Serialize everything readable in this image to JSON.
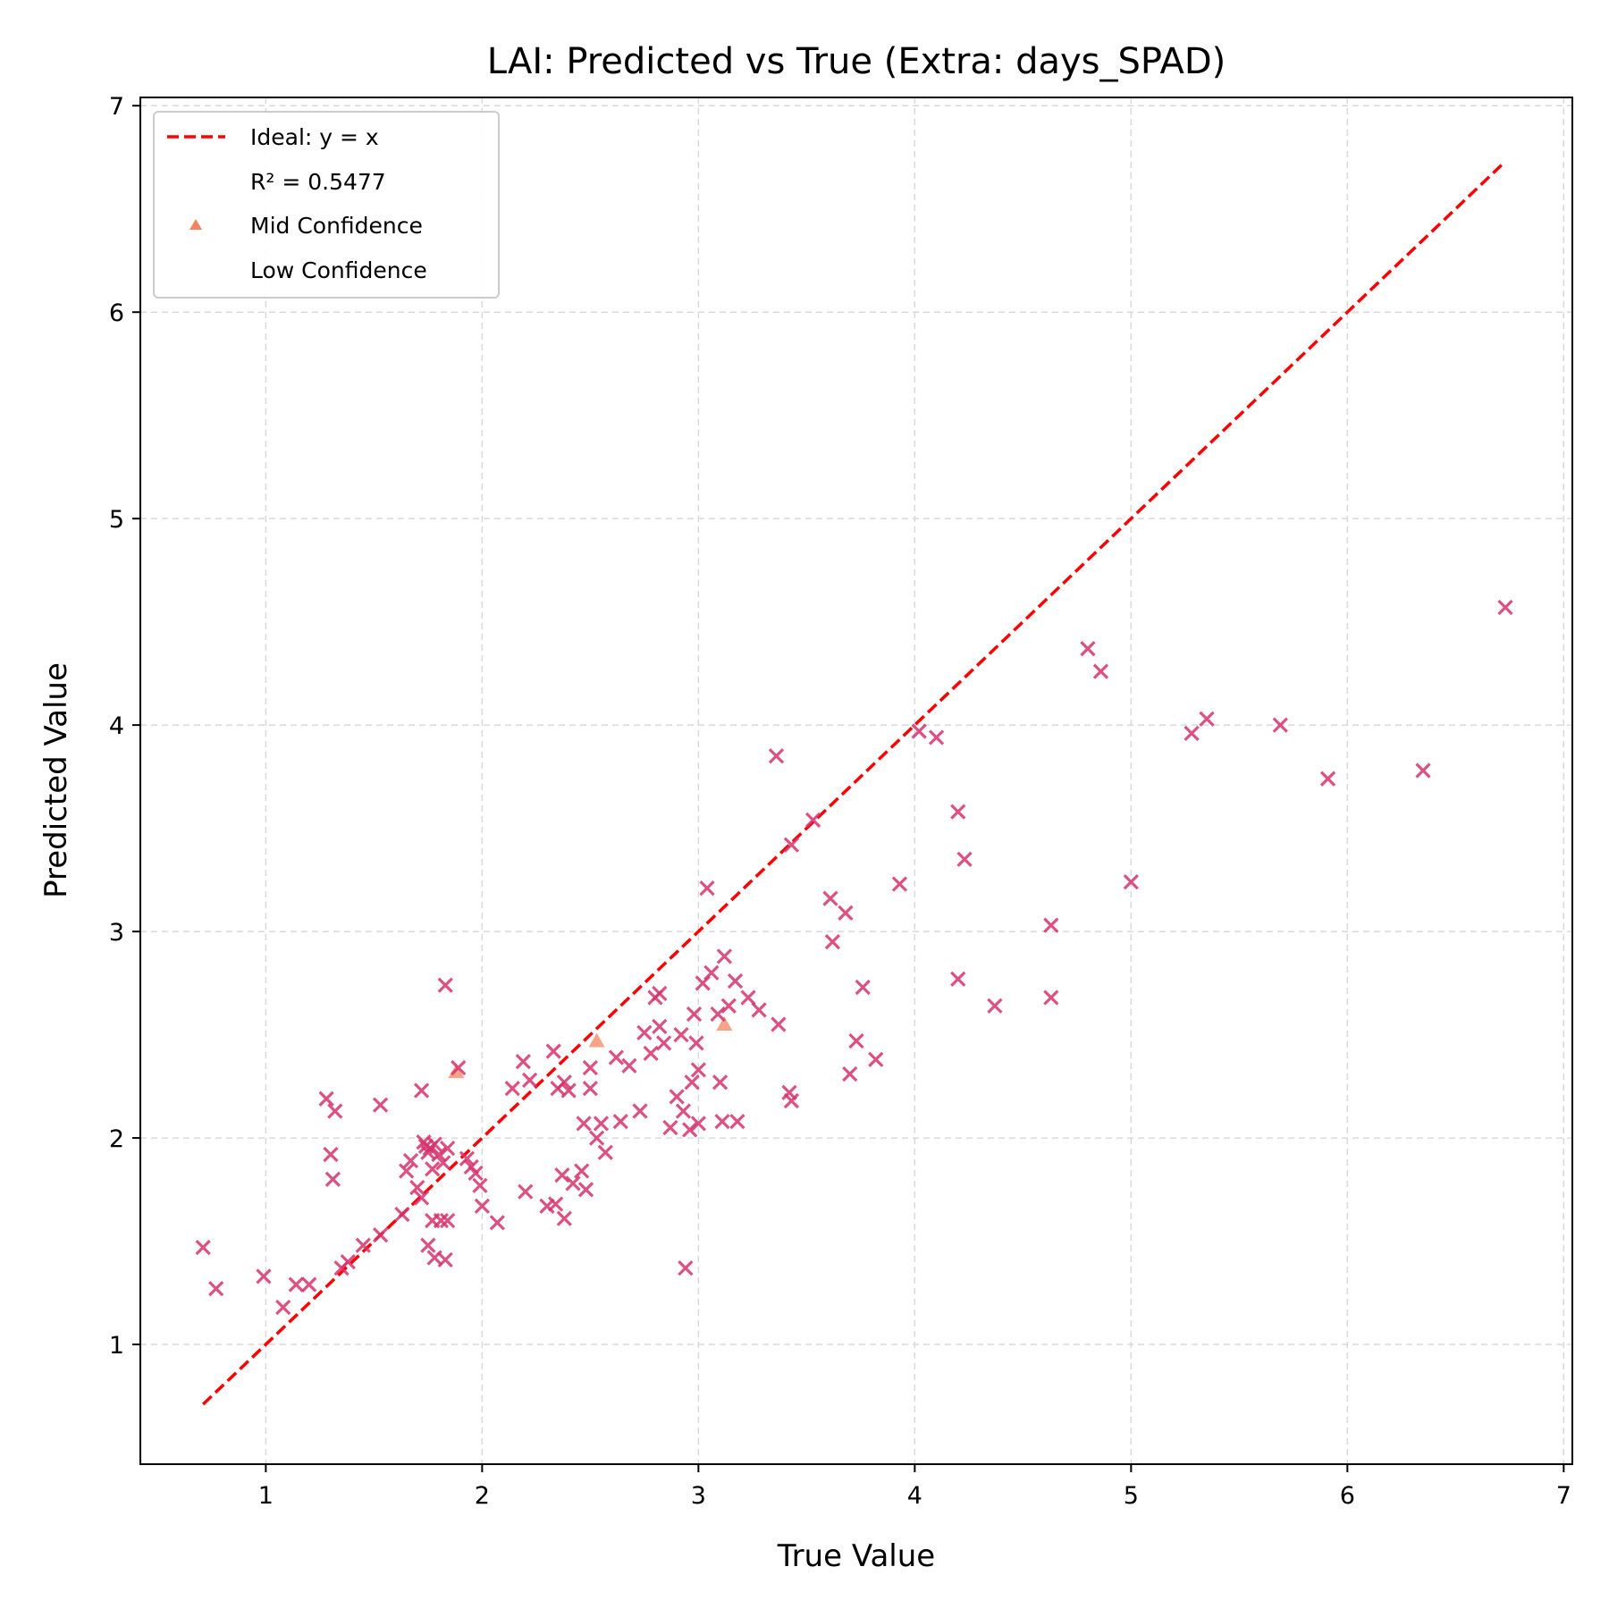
{
  "chart_data": {
    "type": "scatter",
    "title": "LAI: Predicted vs True (Extra: days_SPAD)",
    "xlabel": "True Value",
    "ylabel": "Predicted Value",
    "xlim": [
      0.42,
      7.04
    ],
    "ylim": [
      0.42,
      7.04
    ],
    "xticks": [
      1,
      2,
      3,
      4,
      5,
      6,
      7
    ],
    "yticks": [
      1,
      2,
      3,
      4,
      5,
      6,
      7
    ],
    "grid": true,
    "legend_position": "top-left",
    "ideal_line": {
      "label": "Ideal: y = x",
      "from": [
        0.71,
        0.71
      ],
      "to": [
        6.73,
        6.73
      ],
      "color": "#ff0000"
    },
    "r2_label": "R² = 0.5477",
    "series": [
      {
        "name": "Mid Confidence",
        "marker": "triangle",
        "color": "#f4845f",
        "points": [
          [
            1.88,
            2.32
          ],
          [
            2.53,
            2.47
          ],
          [
            3.12,
            2.55
          ]
        ]
      },
      {
        "name": "Low Confidence",
        "marker": "x",
        "color": "#d6336c",
        "points": [
          [
            0.71,
            1.47
          ],
          [
            0.77,
            1.27
          ],
          [
            0.99,
            1.33
          ],
          [
            1.08,
            1.18
          ],
          [
            1.14,
            1.29
          ],
          [
            1.2,
            1.29
          ],
          [
            1.35,
            1.37
          ],
          [
            1.38,
            1.4
          ],
          [
            1.45,
            1.48
          ],
          [
            1.53,
            1.53
          ],
          [
            1.63,
            1.63
          ],
          [
            1.28,
            2.19
          ],
          [
            1.32,
            2.13
          ],
          [
            1.3,
            1.92
          ],
          [
            1.31,
            1.8
          ],
          [
            1.53,
            2.16
          ],
          [
            1.72,
            2.23
          ],
          [
            1.65,
            1.84
          ],
          [
            1.67,
            1.89
          ],
          [
            1.7,
            1.76
          ],
          [
            1.72,
            1.71
          ],
          [
            1.73,
            1.98
          ],
          [
            1.74,
            1.96
          ],
          [
            1.75,
            1.93
          ],
          [
            1.76,
            1.95
          ],
          [
            1.77,
            1.85
          ],
          [
            1.78,
            1.97
          ],
          [
            1.8,
            1.92
          ],
          [
            1.82,
            1.88
          ],
          [
            1.84,
            1.95
          ],
          [
            1.75,
            1.48
          ],
          [
            1.77,
            1.6
          ],
          [
            1.78,
            1.42
          ],
          [
            1.81,
            1.6
          ],
          [
            1.83,
            1.41
          ],
          [
            1.84,
            1.6
          ],
          [
            1.83,
            2.74
          ],
          [
            1.89,
            2.34
          ],
          [
            1.93,
            1.9
          ],
          [
            1.95,
            1.86
          ],
          [
            1.97,
            1.83
          ],
          [
            1.99,
            1.77
          ],
          [
            2.0,
            1.67
          ],
          [
            2.07,
            1.59
          ],
          [
            2.14,
            2.24
          ],
          [
            2.19,
            2.37
          ],
          [
            2.22,
            2.28
          ],
          [
            2.2,
            1.74
          ],
          [
            2.3,
            1.67
          ],
          [
            2.34,
            1.68
          ],
          [
            2.33,
            2.42
          ],
          [
            2.35,
            2.24
          ],
          [
            2.38,
            2.27
          ],
          [
            2.4,
            2.23
          ],
          [
            2.37,
            1.82
          ],
          [
            2.38,
            1.61
          ],
          [
            2.42,
            1.78
          ],
          [
            2.46,
            1.84
          ],
          [
            2.48,
            1.75
          ],
          [
            2.47,
            2.07
          ],
          [
            2.5,
            2.34
          ],
          [
            2.5,
            2.24
          ],
          [
            2.53,
            2.0
          ],
          [
            2.55,
            2.07
          ],
          [
            2.57,
            1.93
          ],
          [
            2.62,
            2.39
          ],
          [
            2.64,
            2.08
          ],
          [
            2.68,
            2.35
          ],
          [
            2.73,
            2.13
          ],
          [
            2.75,
            2.51
          ],
          [
            2.78,
            2.41
          ],
          [
            2.8,
            2.68
          ],
          [
            2.82,
            2.7
          ],
          [
            2.82,
            2.54
          ],
          [
            2.84,
            2.46
          ],
          [
            2.87,
            2.05
          ],
          [
            2.9,
            2.2
          ],
          [
            2.92,
            2.5
          ],
          [
            2.93,
            2.13
          ],
          [
            2.94,
            1.37
          ],
          [
            2.96,
            2.04
          ],
          [
            2.97,
            2.27
          ],
          [
            2.98,
            2.6
          ],
          [
            3.0,
            2.33
          ],
          [
            2.99,
            2.46
          ],
          [
            3.0,
            2.07
          ],
          [
            3.02,
            2.75
          ],
          [
            3.04,
            3.21
          ],
          [
            3.06,
            2.8
          ],
          [
            3.09,
            2.6
          ],
          [
            3.1,
            2.27
          ],
          [
            3.11,
            2.08
          ],
          [
            3.12,
            2.88
          ],
          [
            3.14,
            2.64
          ],
          [
            3.17,
            2.76
          ],
          [
            3.18,
            2.08
          ],
          [
            3.23,
            2.68
          ],
          [
            3.28,
            2.62
          ],
          [
            3.36,
            3.85
          ],
          [
            3.37,
            2.55
          ],
          [
            3.42,
            2.22
          ],
          [
            3.43,
            2.18
          ],
          [
            3.43,
            3.42
          ],
          [
            3.53,
            3.54
          ],
          [
            3.61,
            3.16
          ],
          [
            3.62,
            2.95
          ],
          [
            3.68,
            3.09
          ],
          [
            3.7,
            2.31
          ],
          [
            3.73,
            2.47
          ],
          [
            3.76,
            2.73
          ],
          [
            3.82,
            2.38
          ],
          [
            3.93,
            3.23
          ],
          [
            4.02,
            3.97
          ],
          [
            4.1,
            3.94
          ],
          [
            4.2,
            3.58
          ],
          [
            4.23,
            3.35
          ],
          [
            4.2,
            2.77
          ],
          [
            4.37,
            2.64
          ],
          [
            4.63,
            3.03
          ],
          [
            4.63,
            2.68
          ],
          [
            4.8,
            4.37
          ],
          [
            4.86,
            4.26
          ],
          [
            5.0,
            3.24
          ],
          [
            5.28,
            3.96
          ],
          [
            5.35,
            4.03
          ],
          [
            5.69,
            4.0
          ],
          [
            5.91,
            3.74
          ],
          [
            6.35,
            3.78
          ],
          [
            6.73,
            4.57
          ]
        ]
      }
    ]
  }
}
